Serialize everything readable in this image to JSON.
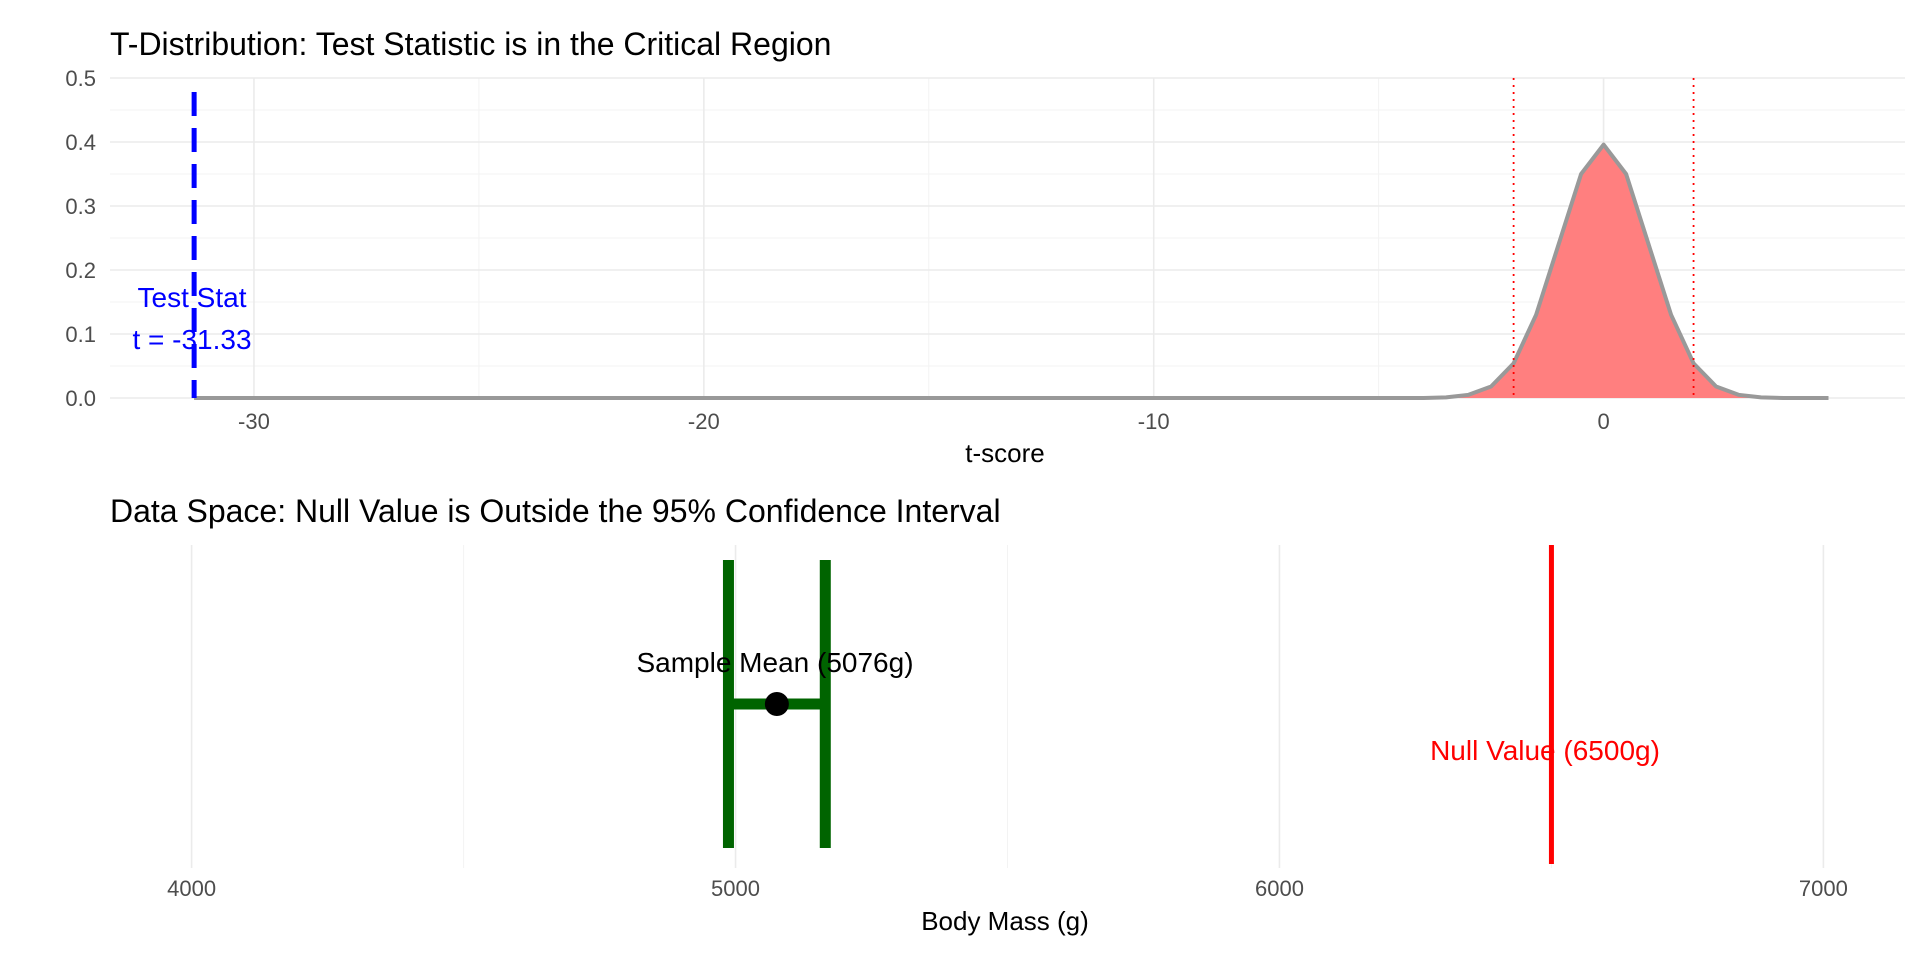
{
  "chart_data": [
    {
      "type": "area",
      "title": "T-Distribution: Test Statistic is in the Critical Region",
      "xlabel": "t-score",
      "ylabel": "",
      "xlim": [
        -33.2,
        6.7
      ],
      "ylim": [
        0,
        0.5
      ],
      "x_ticks": [
        -30,
        -20,
        -10,
        0
      ],
      "x_tick_labels": [
        "-30",
        "-20",
        "-10",
        "0"
      ],
      "y_ticks": [
        0,
        0.1,
        0.2,
        0.3,
        0.4,
        0.5
      ],
      "y_tick_labels": [
        "0.0",
        "0.1",
        "0.2",
        "0.3",
        "0.4",
        "0.5"
      ],
      "grid": true,
      "series": [
        {
          "kind": "density",
          "x": [
            -31.33,
            -4.0,
            -3.5,
            -3.0,
            -2.5,
            -2.0,
            -1.5,
            -1.0,
            -0.5,
            0.0,
            0.5,
            1.0,
            1.5,
            2.0,
            2.5,
            3.0,
            3.5,
            4.0,
            5.0
          ],
          "y": [
            0.0,
            0.0,
            0.001,
            0.005,
            0.018,
            0.054,
            0.13,
            0.24,
            0.35,
            0.396,
            0.35,
            0.24,
            0.13,
            0.054,
            0.018,
            0.005,
            0.001,
            0.0,
            0.0
          ],
          "fill_color": "#ff7f7f",
          "line_color": "#999999"
        }
      ],
      "critical_values": [
        -2.0,
        2.0
      ],
      "critical_color": "#ff0000",
      "test_statistic": -31.33,
      "test_stat_color": "#0000ff",
      "annotations": [
        "Test Stat",
        "t = -31.33"
      ]
    },
    {
      "type": "scatter",
      "title": "Data Space: Null Value is Outside the 95% Confidence Interval",
      "xlabel": "Body Mass (g)",
      "ylabel": "",
      "xlim": [
        3850,
        7150
      ],
      "x_ticks": [
        4000,
        5000,
        6000,
        7000
      ],
      "x_tick_labels": [
        "4000",
        "5000",
        "6000",
        "7000"
      ],
      "grid": true,
      "sample_mean": 5076,
      "ci": [
        4987,
        5165
      ],
      "ci_color": "#006400",
      "null_value": 6500,
      "null_color": "#ff0000",
      "annotations": [
        "Sample Mean (5076g)",
        "Null Value (6500g)"
      ]
    }
  ]
}
